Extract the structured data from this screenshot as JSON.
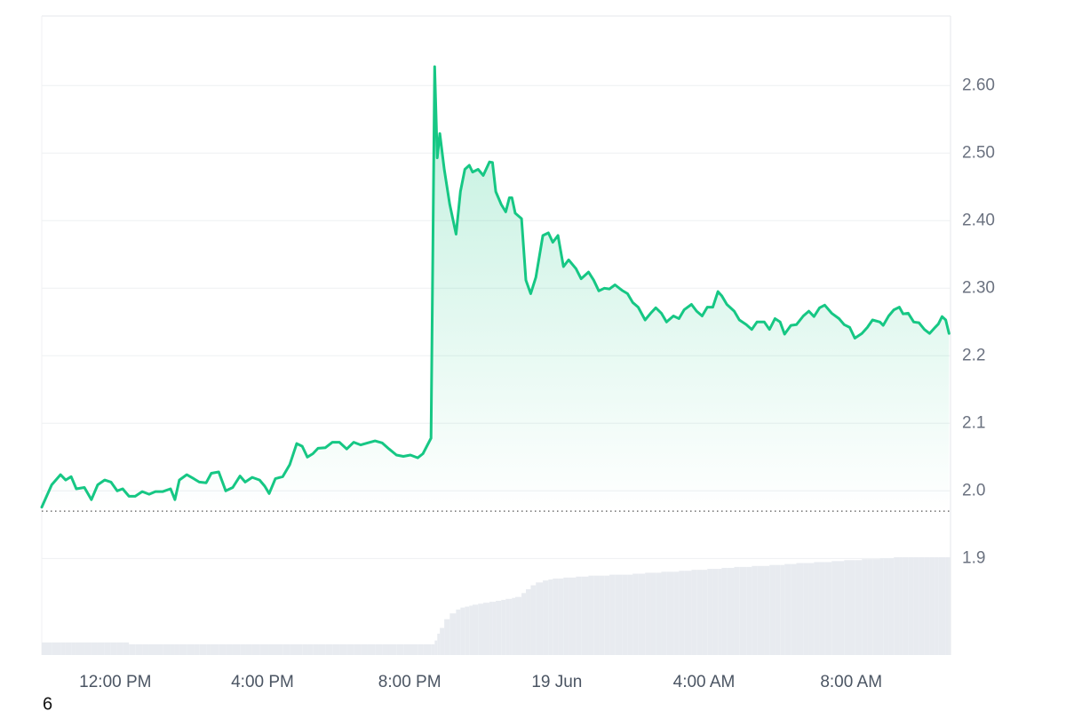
{
  "chart_data": {
    "type": "line",
    "footer_text": "6",
    "xlim": [
      10,
      34.7
    ],
    "ylim": [
      1.757,
      2.703
    ],
    "xticks": [
      {
        "value": 12,
        "label": "12:00 PM"
      },
      {
        "value": 16,
        "label": "4:00 PM"
      },
      {
        "value": 20,
        "label": "8:00 PM"
      },
      {
        "value": 24,
        "label": "19 Jun"
      },
      {
        "value": 28,
        "label": "4:00 AM"
      },
      {
        "value": 32,
        "label": "8:00 AM"
      }
    ],
    "yticks": [
      1.9,
      {
        "value": 2.0,
        "label": "2.0"
      },
      2.1,
      2.2,
      {
        "value": 2.3,
        "label": "2.30"
      },
      {
        "value": 2.4,
        "label": "2.40"
      },
      {
        "value": 2.5,
        "label": "2.50"
      },
      {
        "value": 2.6,
        "label": "2.60"
      }
    ],
    "grid": true,
    "reference_line": 1.97,
    "color": "#16c784",
    "x": [
      10.0,
      10.27,
      10.51,
      10.65,
      10.8,
      10.94,
      11.16,
      11.35,
      11.52,
      11.71,
      11.88,
      12.05,
      12.2,
      12.37,
      12.54,
      12.73,
      12.92,
      13.09,
      13.29,
      13.5,
      13.62,
      13.74,
      13.94,
      14.13,
      14.28,
      14.47,
      14.61,
      14.81,
      15.0,
      15.19,
      15.39,
      15.53,
      15.72,
      15.92,
      16.06,
      16.18,
      16.35,
      16.55,
      16.74,
      16.93,
      17.08,
      17.22,
      17.37,
      17.51,
      17.71,
      17.9,
      18.09,
      18.29,
      18.48,
      18.67,
      18.86,
      19.06,
      19.25,
      19.44,
      19.64,
      19.83,
      20.02,
      20.22,
      20.36,
      20.58,
      20.68,
      20.75,
      20.82,
      20.94,
      21.09,
      21.26,
      21.38,
      21.5,
      21.62,
      21.71,
      21.86,
      22.0,
      22.17,
      22.25,
      22.34,
      22.49,
      22.61,
      22.71,
      22.78,
      22.87,
      23.04,
      23.16,
      23.29,
      23.43,
      23.62,
      23.77,
      23.89,
      24.03,
      24.18,
      24.32,
      24.52,
      24.66,
      24.86,
      25.0,
      25.14,
      25.29,
      25.43,
      25.58,
      25.77,
      25.92,
      26.06,
      26.21,
      26.4,
      26.55,
      26.69,
      26.84,
      26.98,
      27.17,
      27.32,
      27.46,
      27.66,
      27.8,
      27.95,
      28.09,
      28.24,
      28.38,
      28.48,
      28.62,
      28.82,
      28.96,
      29.15,
      29.3,
      29.44,
      29.64,
      29.78,
      29.93,
      30.07,
      30.19,
      30.36,
      30.51,
      30.7,
      30.85,
      30.99,
      31.14,
      31.28,
      31.47,
      31.67,
      31.81,
      31.96,
      32.1,
      32.29,
      32.44,
      32.58,
      32.78,
      32.87,
      33.02,
      33.16,
      33.31,
      33.41,
      33.55,
      33.7,
      33.84,
      33.99,
      34.13,
      34.28,
      34.37,
      34.47,
      34.57,
      34.66
    ],
    "values": [
      1.976,
      2.009,
      2.024,
      2.016,
      2.021,
      2.003,
      2.005,
      1.987,
      2.009,
      2.016,
      2.013,
      2.0,
      2.003,
      1.992,
      1.992,
      1.999,
      1.995,
      1.999,
      1.999,
      2.003,
      1.987,
      2.016,
      2.024,
      2.018,
      2.013,
      2.012,
      2.026,
      2.028,
      2.0,
      2.005,
      2.022,
      2.013,
      2.02,
      2.016,
      2.007,
      1.996,
      2.018,
      2.021,
      2.039,
      2.07,
      2.066,
      2.05,
      2.055,
      2.063,
      2.064,
      2.072,
      2.072,
      2.062,
      2.072,
      2.068,
      2.071,
      2.074,
      2.071,
      2.062,
      2.053,
      2.051,
      2.053,
      2.049,
      2.055,
      2.078,
      2.628,
      2.493,
      2.529,
      2.476,
      2.424,
      2.38,
      2.443,
      2.476,
      2.482,
      2.472,
      2.476,
      2.467,
      2.487,
      2.486,
      2.443,
      2.424,
      2.413,
      2.434,
      2.434,
      2.411,
      2.403,
      2.312,
      2.292,
      2.316,
      2.378,
      2.382,
      2.368,
      2.378,
      2.332,
      2.342,
      2.329,
      2.314,
      2.324,
      2.312,
      2.296,
      2.3,
      2.299,
      2.305,
      2.297,
      2.292,
      2.279,
      2.272,
      2.253,
      2.263,
      2.271,
      2.263,
      2.25,
      2.259,
      2.255,
      2.268,
      2.276,
      2.266,
      2.259,
      2.272,
      2.272,
      2.295,
      2.289,
      2.276,
      2.266,
      2.253,
      2.246,
      2.239,
      2.25,
      2.25,
      2.239,
      2.255,
      2.25,
      2.232,
      2.245,
      2.246,
      2.259,
      2.266,
      2.258,
      2.271,
      2.275,
      2.263,
      2.255,
      2.246,
      2.242,
      2.226,
      2.233,
      2.242,
      2.253,
      2.25,
      2.245,
      2.259,
      2.268,
      2.272,
      2.262,
      2.263,
      2.25,
      2.249,
      2.239,
      2.233,
      2.242,
      2.247,
      2.258,
      2.253,
      2.233
    ],
    "volume": {
      "color": "#e8ebf0",
      "values": [
        13,
        13,
        13,
        13,
        13,
        13,
        13,
        13,
        13,
        13,
        13,
        13,
        13,
        11,
        11,
        11,
        11,
        11,
        11,
        11,
        11,
        11,
        11,
        11,
        11,
        11,
        11,
        11,
        11,
        11,
        11,
        11,
        11,
        11,
        11,
        11,
        11,
        11,
        11,
        11,
        11,
        11,
        11,
        11,
        11,
        11,
        11,
        11,
        11,
        11,
        11,
        11,
        11,
        11,
        11,
        11,
        11,
        11,
        11,
        11,
        15,
        22,
        28,
        37,
        43,
        47,
        49,
        50,
        51,
        52,
        53,
        54,
        55,
        55,
        56,
        57,
        58,
        58,
        59,
        60,
        64,
        68,
        72,
        75,
        77,
        78,
        79,
        79,
        80,
        80,
        81,
        81,
        82,
        82,
        82,
        82,
        83,
        83,
        83,
        83,
        84,
        84,
        85,
        85,
        85,
        86,
        86,
        86,
        87,
        87,
        88,
        88,
        88,
        89,
        89,
        89,
        90,
        90,
        91,
        91,
        91,
        92,
        92,
        92,
        93,
        93,
        93,
        94,
        94,
        95,
        95,
        95,
        96,
        96,
        96,
        97,
        97,
        98,
        98,
        98,
        99,
        99,
        99,
        100,
        100,
        100,
        101,
        101,
        101,
        101,
        101,
        101,
        101,
        101,
        101,
        101,
        101,
        101,
        101
      ]
    }
  }
}
